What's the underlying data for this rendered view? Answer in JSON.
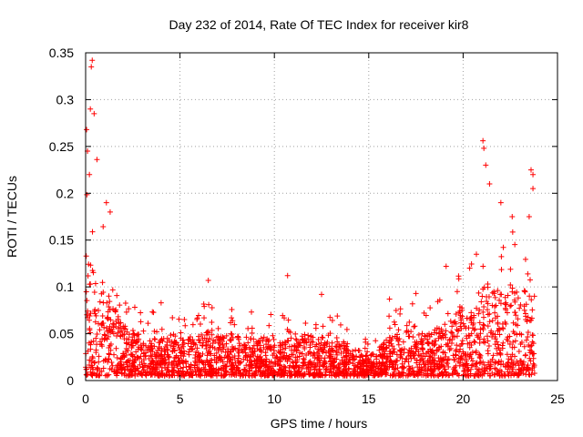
{
  "chart_data": {
    "type": "scatter",
    "title": "Day 232 of 2014, Rate Of TEC Index for receiver kir8",
    "xlabel": "GPS time / hours",
    "ylabel": "ROTI / TECUs",
    "xlim": [
      0,
      25
    ],
    "ylim": [
      0,
      0.35
    ],
    "grid": true,
    "marker": "plus",
    "x_ticks": [
      0,
      5,
      10,
      15,
      20,
      25
    ],
    "x_tick_labels": [
      "0",
      "5",
      "10",
      "15",
      "20",
      "25"
    ],
    "y_ticks": [
      0,
      0.05,
      0.1,
      0.15,
      0.2,
      0.25,
      0.3,
      0.35
    ],
    "y_tick_labels": [
      "0",
      "0.05",
      "0.1",
      "0.15",
      "0.2",
      "0.25",
      "0.3",
      "0.35"
    ],
    "series": [
      {
        "name": "ROTI",
        "color": "#ff0000",
        "x_range": [
          0,
          23.8
        ],
        "baseline_profile": {
          "hours": [
            0,
            0.5,
            1,
            1.5,
            2,
            3,
            4,
            5,
            6,
            7,
            8,
            9,
            10,
            11,
            12,
            13,
            14,
            15,
            16,
            17,
            18,
            19,
            20,
            21,
            22,
            23,
            23.8
          ],
          "typical_max": [
            0.14,
            0.12,
            0.1,
            0.08,
            0.06,
            0.05,
            0.045,
            0.045,
            0.05,
            0.055,
            0.05,
            0.045,
            0.05,
            0.045,
            0.05,
            0.045,
            0.04,
            0.025,
            0.045,
            0.055,
            0.05,
            0.06,
            0.08,
            0.1,
            0.1,
            0.1,
            0.09
          ]
        },
        "peaks": [
          {
            "x": 0.35,
            "y": 0.342
          },
          {
            "x": 0.3,
            "y": 0.335
          },
          {
            "x": 0.25,
            "y": 0.29
          },
          {
            "x": 0.45,
            "y": 0.285
          },
          {
            "x": 0.05,
            "y": 0.268
          },
          {
            "x": 0.1,
            "y": 0.245
          },
          {
            "x": 0.6,
            "y": 0.236
          },
          {
            "x": 0.2,
            "y": 0.22
          },
          {
            "x": 1.1,
            "y": 0.19
          },
          {
            "x": 1.3,
            "y": 0.18
          },
          {
            "x": 4.0,
            "y": 0.083
          },
          {
            "x": 6.5,
            "y": 0.107
          },
          {
            "x": 10.7,
            "y": 0.112
          },
          {
            "x": 12.5,
            "y": 0.092
          },
          {
            "x": 16.1,
            "y": 0.087
          },
          {
            "x": 17.5,
            "y": 0.093
          },
          {
            "x": 19.1,
            "y": 0.122
          },
          {
            "x": 21.05,
            "y": 0.256
          },
          {
            "x": 21.1,
            "y": 0.248
          },
          {
            "x": 21.2,
            "y": 0.23
          },
          {
            "x": 21.4,
            "y": 0.21
          },
          {
            "x": 22.0,
            "y": 0.19
          },
          {
            "x": 22.6,
            "y": 0.175
          },
          {
            "x": 23.6,
            "y": 0.225
          },
          {
            "x": 23.7,
            "y": 0.22
          },
          {
            "x": 23.7,
            "y": 0.205
          },
          {
            "x": 23.5,
            "y": 0.175
          }
        ]
      }
    ]
  }
}
